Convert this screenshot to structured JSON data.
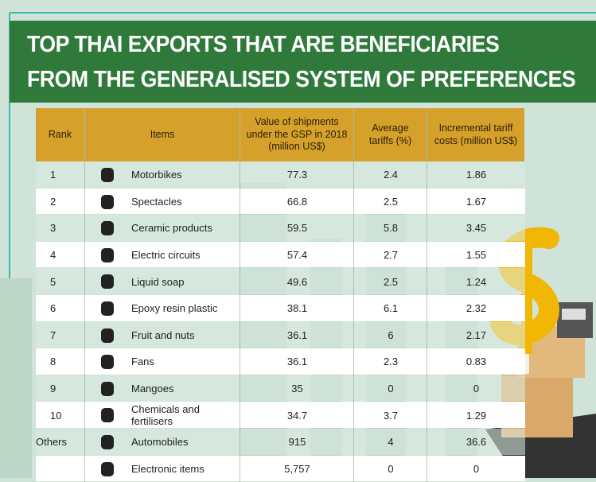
{
  "header": {
    "title_lines": [
      "TOP THAI EXPORTS THAT ARE BENEFICIARIES",
      "FROM THE GENERALISED SYSTEM OF PREFERENCES"
    ]
  },
  "table": {
    "columns": [
      "Rank",
      "Items",
      "Value of shipments under the GSP in 2018 (million US$)",
      "Average tariffs (%)",
      "Incremental tariff costs (million US$)"
    ],
    "rows": [
      {
        "rank": "1",
        "item": "Motorbikes",
        "value": "77.3",
        "tariff": "2.4",
        "cost": "1.86"
      },
      {
        "rank": "2",
        "item": "Spectacles",
        "value": "66.8",
        "tariff": "2.5",
        "cost": "1.67"
      },
      {
        "rank": "3",
        "item": "Ceramic products",
        "value": "59.5",
        "tariff": "5.8",
        "cost": "3.45"
      },
      {
        "rank": "4",
        "item": "Electric circuits",
        "value": "57.4",
        "tariff": "2.7",
        "cost": "1.55"
      },
      {
        "rank": "5",
        "item": "Liquid soap",
        "value": "49.6",
        "tariff": "2.5",
        "cost": "1.24"
      },
      {
        "rank": "6",
        "item": "Epoxy resin plastic",
        "value": "38.1",
        "tariff": "6.1",
        "cost": "2.32"
      },
      {
        "rank": "7",
        "item": "Fruit and nuts",
        "value": "36.1",
        "tariff": "6",
        "cost": "2.17"
      },
      {
        "rank": "8",
        "item": "Fans",
        "value": "36.1",
        "tariff": "2.3",
        "cost": "0.83"
      },
      {
        "rank": "9",
        "item": "Mangoes",
        "value": "35",
        "tariff": "0",
        "cost": "0"
      },
      {
        "rank": "10",
        "item": "Chemicals and fertilisers",
        "value": "34.7",
        "tariff": "3.7",
        "cost": "1.29"
      },
      {
        "rank": "Others",
        "item": "Automobiles",
        "value": "915",
        "tariff": "4",
        "cost": "36.6"
      },
      {
        "item": "Electronic items",
        "value": "5,757",
        "tariff": "0",
        "cost": "0"
      }
    ]
  }
}
